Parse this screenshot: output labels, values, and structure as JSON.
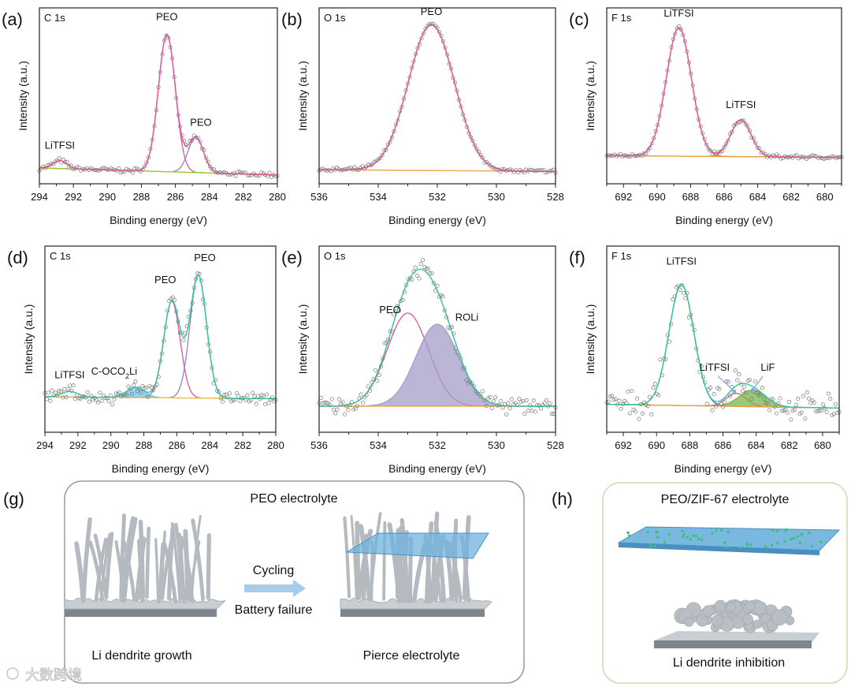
{
  "chart_data": [
    {
      "id": "a",
      "type": "line",
      "panel_label": "(a)",
      "core_label": "C 1s",
      "xlabel": "Binding energy (eV)",
      "ylabel": "Intensity (a.u.)",
      "xlim": [
        294,
        280
      ],
      "ylim": [
        0,
        1
      ],
      "xticks": [
        294,
        292,
        290,
        288,
        286,
        284,
        282,
        280
      ],
      "baseline": [
        0.09,
        0.05
      ],
      "noise": 0.006,
      "envelope_color": "#e0559a",
      "components": [
        {
          "name": "PEO",
          "center": 286.5,
          "height": 0.78,
          "sigma": 0.5,
          "color": "#e0559a",
          "fill": false
        },
        {
          "name": "PEO",
          "center": 284.8,
          "height": 0.2,
          "sigma": 0.45,
          "color": "#8e86c0",
          "fill": false
        },
        {
          "name": "LiTFSI",
          "center": 292.8,
          "height": 0.045,
          "sigma": 0.4,
          "color": "#f0a040",
          "fill": false
        }
      ],
      "baseline_color": "#9acd32",
      "annotations": [
        {
          "text": "LiTFSI",
          "x": 292.8,
          "y": 0.2
        },
        {
          "text": "PEO",
          "x": 286.5,
          "y": 0.93
        },
        {
          "text": "PEO",
          "x": 284.5,
          "y": 0.33
        }
      ]
    },
    {
      "id": "b",
      "type": "line",
      "panel_label": "(b)",
      "core_label": "O 1s",
      "xlabel": "Binding energy (eV)",
      "ylabel": "Intensity (a.u.)",
      "xlim": [
        536,
        528
      ],
      "ylim": [
        0,
        1
      ],
      "xticks": [
        536,
        534,
        532,
        530,
        528
      ],
      "baseline": [
        0.08,
        0.07
      ],
      "noise": 0.005,
      "envelope_color": "#e0559a",
      "components": [
        {
          "name": "PEO",
          "center": 532.2,
          "height": 0.83,
          "sigma": 0.78,
          "color": "#e0559a",
          "fill": false
        }
      ],
      "baseline_color": "#f0a040",
      "annotations": [
        {
          "text": "PEO",
          "x": 532.2,
          "y": 0.96
        }
      ]
    },
    {
      "id": "c",
      "type": "line",
      "panel_label": "(c)",
      "core_label": "F 1s",
      "xlabel": "Binding energy (eV)",
      "ylabel": "Intensity (a.u.)",
      "xlim": [
        693,
        679
      ],
      "ylim": [
        0,
        1
      ],
      "xticks": [
        692,
        690,
        688,
        686,
        684,
        682,
        680
      ],
      "baseline": [
        0.16,
        0.15
      ],
      "noise": 0.005,
      "envelope_color": "#e0559a",
      "components": [
        {
          "name": "LiTFSI",
          "center": 688.7,
          "height": 0.73,
          "sigma": 0.75,
          "color": "#e0559a",
          "fill": false
        },
        {
          "name": "LiTFSI",
          "center": 685.0,
          "height": 0.21,
          "sigma": 0.6,
          "color": "#f0a040",
          "fill": false
        }
      ],
      "baseline_color": "#f0a040",
      "annotations": [
        {
          "text": "LiTFSI",
          "x": 688.7,
          "y": 0.95
        },
        {
          "text": "LiTFSI",
          "x": 685.0,
          "y": 0.43
        }
      ]
    },
    {
      "id": "d",
      "type": "line",
      "panel_label": "(d)",
      "core_label": "C 1s",
      "xlabel": "Binding energy (eV)",
      "ylabel": "Intensity (a.u.)",
      "xlim": [
        294,
        280
      ],
      "ylim": [
        0,
        1
      ],
      "xticks": [
        294,
        292,
        290,
        288,
        286,
        284,
        282,
        280
      ],
      "baseline": [
        0.19,
        0.18
      ],
      "noise": 0.015,
      "envelope_color": "#2ec4a0",
      "components": [
        {
          "name": "PEO",
          "center": 286.3,
          "height": 0.52,
          "sigma": 0.5,
          "color": "#e0559a",
          "fill": false
        },
        {
          "name": "PEO",
          "center": 284.7,
          "height": 0.66,
          "sigma": 0.5,
          "color": "#8e86c0",
          "fill": false
        },
        {
          "name": "C-OCO2Li",
          "center": 288.5,
          "height": 0.055,
          "sigma": 0.55,
          "color": "#6ec0f0",
          "fill": true
        },
        {
          "name": "LiTFSI",
          "center": 292.5,
          "height": 0.03,
          "sigma": 0.5,
          "color": "#d8c860",
          "fill": false
        }
      ],
      "baseline_color": "#f0c040",
      "annotations": [
        {
          "text": "LiTFSI",
          "x": 292.5,
          "y": 0.29
        },
        {
          "text": "C-OCO",
          "sub": "2",
          "tail": "Li",
          "x": 289.8,
          "y": 0.31
        },
        {
          "text": "PEO",
          "x": 286.7,
          "y": 0.8
        },
        {
          "text": "PEO",
          "x": 284.3,
          "y": 0.92
        }
      ]
    },
    {
      "id": "e",
      "type": "line",
      "panel_label": "(e)",
      "core_label": "O 1s",
      "xlabel": "Binding energy (eV)",
      "ylabel": "Intensity (a.u.)",
      "xlim": [
        536,
        528
      ],
      "ylim": [
        0,
        1
      ],
      "xticks": [
        536,
        534,
        532,
        530,
        528
      ],
      "baseline": [
        0.14,
        0.14
      ],
      "noise": 0.02,
      "envelope_color": "#2ec4a0",
      "components": [
        {
          "name": "PEO",
          "center": 533.0,
          "height": 0.5,
          "sigma": 0.7,
          "color": "#e0559a",
          "fill": false
        },
        {
          "name": "ROLi",
          "center": 532.0,
          "height": 0.44,
          "sigma": 0.72,
          "color": "#a49cc8",
          "fill": true
        }
      ],
      "baseline_color": "#f0a040",
      "annotations": [
        {
          "text": "PEO",
          "x": 533.6,
          "y": 0.64
        },
        {
          "text": "ROLi",
          "x": 531.0,
          "y": 0.6
        }
      ]
    },
    {
      "id": "f",
      "type": "line",
      "panel_label": "(f)",
      "core_label": "F 1s",
      "xlabel": "Binding energy (eV)",
      "ylabel": "Intensity (a.u.)",
      "xlim": [
        693,
        679
      ],
      "ylim": [
        0,
        1
      ],
      "xticks": [
        692,
        690,
        688,
        686,
        684,
        682,
        680
      ],
      "baseline": [
        0.15,
        0.13
      ],
      "noise": 0.03,
      "envelope_color": "#2ec4a0",
      "components": [
        {
          "name": "LiTFSI",
          "center": 688.5,
          "height": 0.65,
          "sigma": 0.75,
          "color": "#4a7fc0",
          "fill": false
        },
        {
          "name": "LiTFSI",
          "center": 685.2,
          "height": 0.07,
          "sigma": 0.6,
          "color": "#e0559a",
          "fill": false
        },
        {
          "name": "LiF",
          "center": 684.2,
          "height": 0.09,
          "sigma": 0.8,
          "color": "#7ab648",
          "fill": true
        }
      ],
      "baseline_color": "#f0a040",
      "annotations": [
        {
          "text": "LiTFSI",
          "x": 688.5,
          "y": 0.9
        },
        {
          "text": "LiTFSI",
          "x": 686.5,
          "y": 0.33
        },
        {
          "text": "LiF",
          "x": 683.3,
          "y": 0.33
        }
      ]
    }
  ],
  "illustrations": {
    "g": {
      "panel_label": "(g)",
      "title": "PEO electrolyte",
      "arrow_top": "Cycling",
      "arrow_bottom": "Battery failure",
      "left_caption": "Li dendrite growth",
      "right_caption": "Pierce electrolyte"
    },
    "h": {
      "panel_label": "(h)",
      "title": "PEO/ZIF-67 electrolyte",
      "caption": "Li dendrite inhibition"
    }
  },
  "watermark": "大数跨境"
}
